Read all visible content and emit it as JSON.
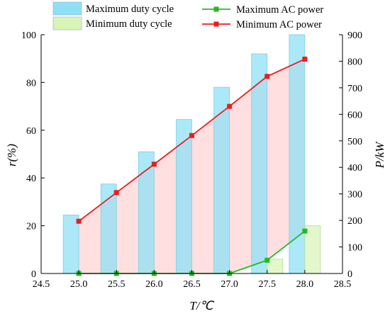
{
  "chart_data": {
    "type": "bar",
    "x": [
      25.0,
      25.5,
      26.0,
      26.5,
      27.0,
      27.5,
      28.0
    ],
    "x_ticks": [
      "24.5",
      "25.0",
      "25.5",
      "26.0",
      "26.5",
      "27.0",
      "27.5",
      "28.0",
      "28.5"
    ],
    "xlabel": "T/℃",
    "ylabel_left": "r(%)",
    "ylabel_right": "P/kW",
    "ylim_left": [
      0,
      100
    ],
    "ylim_right": [
      0,
      900
    ],
    "xlim": [
      24.5,
      28.5
    ],
    "y_ticks_left": [
      "0",
      "20",
      "40",
      "60",
      "80",
      "100"
    ],
    "y_ticks_right": [
      "0",
      "100",
      "200",
      "300",
      "400",
      "500",
      "600",
      "700",
      "800",
      "900"
    ],
    "bar_series": [
      {
        "name": "Maximum duty cycle",
        "axis": "left",
        "color": "#8fe0f6",
        "values": [
          24.5,
          37.5,
          51,
          64.5,
          78,
          92,
          100
        ]
      },
      {
        "name": "Minimum duty cycle",
        "axis": "left",
        "color": "#d8f5b8",
        "values": [
          0,
          0,
          0,
          0,
          0,
          6,
          20
        ]
      }
    ],
    "line_series": [
      {
        "name": "Maximum AC power",
        "axis": "right",
        "color": "#22bb22",
        "values": [
          0,
          0,
          0,
          0,
          0,
          50,
          160
        ]
      },
      {
        "name": "Minimum AC power",
        "axis": "right",
        "color": "#ee1c1c",
        "values": [
          197,
          305,
          412,
          520,
          630,
          743,
          808
        ]
      }
    ],
    "legend": "top",
    "grid": false
  }
}
